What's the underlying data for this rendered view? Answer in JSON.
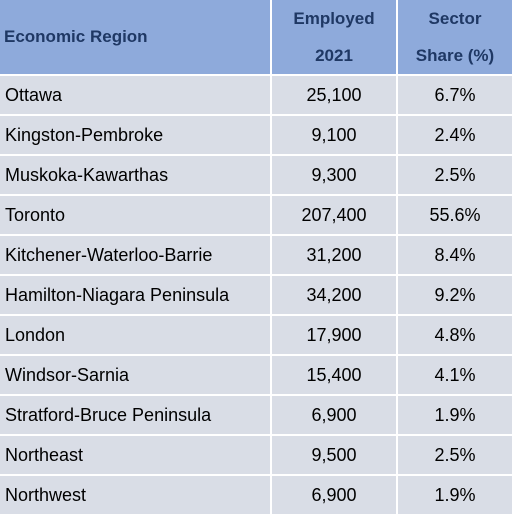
{
  "table": {
    "headers": {
      "region": "Economic Region",
      "employed_line1": "Employed",
      "employed_line2": "2021",
      "share_line1": "Sector",
      "share_line2": "Share (%)"
    },
    "rows": [
      {
        "region": "Ottawa",
        "employed": "25,100",
        "share": "6.7%"
      },
      {
        "region": "Kingston-Pembroke",
        "employed": "9,100",
        "share": "2.4%"
      },
      {
        "region": "Muskoka-Kawarthas",
        "employed": "9,300",
        "share": "2.5%"
      },
      {
        "region": "Toronto",
        "employed": "207,400",
        "share": "55.6%"
      },
      {
        "region": "Kitchener-Waterloo-Barrie",
        "employed": "31,200",
        "share": "8.4%"
      },
      {
        "region": "Hamilton-Niagara Peninsula",
        "employed": "34,200",
        "share": "9.2%"
      },
      {
        "region": "London",
        "employed": "17,900",
        "share": "4.8%"
      },
      {
        "region": "Windsor-Sarnia",
        "employed": "15,400",
        "share": "4.1%"
      },
      {
        "region": "Stratford-Bruce Peninsula",
        "employed": "6,900",
        "share": "1.9%"
      },
      {
        "region": "Northeast",
        "employed": "9,500",
        "share": "2.5%"
      },
      {
        "region": "Northwest",
        "employed": "6,900",
        "share": "1.9%"
      }
    ]
  },
  "colors": {
    "header_bg": "#8eaadb",
    "header_text": "#1f3864",
    "row_bg": "#d9dde6"
  }
}
